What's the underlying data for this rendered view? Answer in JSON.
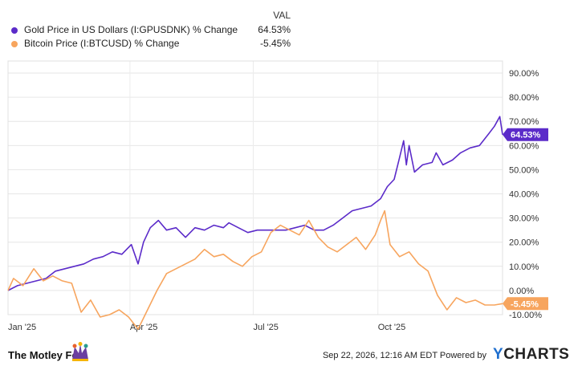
{
  "legend": {
    "header": "VAL",
    "series": [
      {
        "name": "Gold Price in US Dollars (I:GPUSDNK) % Change",
        "value": "64.53%",
        "color": "#5b2bc9"
      },
      {
        "name": "Bitcoin Price (I:BTCUSD) % Change",
        "value": "-5.45%",
        "color": "#f7a55e"
      }
    ]
  },
  "footer": {
    "brand": "The Motley Fool",
    "credit": "Sep 22, 2026, 12:16 AM EDT Powered by",
    "ycharts_y": "Y",
    "ycharts_rest": "CHARTS"
  },
  "chart_data": {
    "type": "line",
    "x_tick_labels": [
      "Jan '25",
      "Apr '25",
      "Jul '25",
      "Oct '25"
    ],
    "y_tick_labels": [
      "90.00%",
      "80.00%",
      "70.00%",
      "60.00%",
      "50.00%",
      "40.00%",
      "30.00%",
      "20.00%",
      "10.00%",
      "0.00%",
      "-10.00%"
    ],
    "ylim": [
      -10,
      95
    ],
    "xlim": [
      "2025-01-01",
      "2026-01-01"
    ],
    "grid": true,
    "series": [
      {
        "name": "Gold Price in US Dollars (I:GPUSDNK) % Change",
        "color": "#5b2bc9",
        "end_label": "64.53%",
        "points": [
          [
            "2025-01-01",
            0
          ],
          [
            "2025-01-08",
            2
          ],
          [
            "2025-01-15",
            3
          ],
          [
            "2025-01-22",
            4
          ],
          [
            "2025-01-29",
            5
          ],
          [
            "2025-02-05",
            8
          ],
          [
            "2025-02-12",
            9
          ],
          [
            "2025-02-19",
            10
          ],
          [
            "2025-02-26",
            11
          ],
          [
            "2025-03-05",
            13
          ],
          [
            "2025-03-12",
            14
          ],
          [
            "2025-03-19",
            16
          ],
          [
            "2025-03-26",
            15
          ],
          [
            "2025-04-02",
            19
          ],
          [
            "2025-04-07",
            11
          ],
          [
            "2025-04-11",
            20
          ],
          [
            "2025-04-16",
            26
          ],
          [
            "2025-04-22",
            29
          ],
          [
            "2025-04-28",
            25
          ],
          [
            "2025-05-05",
            26
          ],
          [
            "2025-05-12",
            22
          ],
          [
            "2025-05-19",
            26
          ],
          [
            "2025-05-26",
            25
          ],
          [
            "2025-06-02",
            27
          ],
          [
            "2025-06-09",
            26
          ],
          [
            "2025-06-13",
            28
          ],
          [
            "2025-06-20",
            26
          ],
          [
            "2025-06-27",
            24
          ],
          [
            "2025-07-04",
            25
          ],
          [
            "2025-07-11",
            25
          ],
          [
            "2025-07-18",
            25
          ],
          [
            "2025-07-25",
            25
          ],
          [
            "2025-08-01",
            26
          ],
          [
            "2025-08-08",
            27
          ],
          [
            "2025-08-15",
            25
          ],
          [
            "2025-08-22",
            25
          ],
          [
            "2025-08-29",
            27
          ],
          [
            "2025-09-05",
            30
          ],
          [
            "2025-09-12",
            33
          ],
          [
            "2025-09-19",
            34
          ],
          [
            "2025-09-26",
            35
          ],
          [
            "2025-10-03",
            38
          ],
          [
            "2025-10-08",
            43
          ],
          [
            "2025-10-13",
            46
          ],
          [
            "2025-10-17",
            55
          ],
          [
            "2025-10-20",
            62
          ],
          [
            "2025-10-22",
            52
          ],
          [
            "2025-10-24",
            60
          ],
          [
            "2025-10-28",
            49
          ],
          [
            "2025-11-03",
            52
          ],
          [
            "2025-11-10",
            53
          ],
          [
            "2025-11-13",
            57
          ],
          [
            "2025-11-18",
            52
          ],
          [
            "2025-11-25",
            54
          ],
          [
            "2025-12-01",
            57
          ],
          [
            "2025-12-08",
            59
          ],
          [
            "2025-12-15",
            60
          ],
          [
            "2025-12-22",
            65
          ],
          [
            "2025-12-26",
            68
          ],
          [
            "2025-12-30",
            72
          ],
          [
            "2026-01-01",
            64.53
          ]
        ]
      },
      {
        "name": "Bitcoin Price (I:BTCUSD) % Change",
        "color": "#f7a55e",
        "end_label": "-5.45%",
        "points": [
          [
            "2025-01-01",
            0
          ],
          [
            "2025-01-05",
            5
          ],
          [
            "2025-01-12",
            2
          ],
          [
            "2025-01-20",
            9
          ],
          [
            "2025-01-27",
            4
          ],
          [
            "2025-02-03",
            6
          ],
          [
            "2025-02-10",
            4
          ],
          [
            "2025-02-17",
            3
          ],
          [
            "2025-02-24",
            -9
          ],
          [
            "2025-03-03",
            -4
          ],
          [
            "2025-03-10",
            -11
          ],
          [
            "2025-03-17",
            -10
          ],
          [
            "2025-03-24",
            -8
          ],
          [
            "2025-03-31",
            -11
          ],
          [
            "2025-04-07",
            -16
          ],
          [
            "2025-04-14",
            -8
          ],
          [
            "2025-04-21",
            0
          ],
          [
            "2025-04-28",
            7
          ],
          [
            "2025-05-05",
            9
          ],
          [
            "2025-05-12",
            11
          ],
          [
            "2025-05-19",
            13
          ],
          [
            "2025-05-26",
            17
          ],
          [
            "2025-06-02",
            14
          ],
          [
            "2025-06-09",
            15
          ],
          [
            "2025-06-16",
            12
          ],
          [
            "2025-06-23",
            10
          ],
          [
            "2025-06-30",
            14
          ],
          [
            "2025-07-07",
            16
          ],
          [
            "2025-07-14",
            24
          ],
          [
            "2025-07-21",
            27
          ],
          [
            "2025-07-28",
            25
          ],
          [
            "2025-08-04",
            23
          ],
          [
            "2025-08-11",
            29
          ],
          [
            "2025-08-18",
            22
          ],
          [
            "2025-08-25",
            18
          ],
          [
            "2025-09-01",
            16
          ],
          [
            "2025-09-08",
            19
          ],
          [
            "2025-09-15",
            22
          ],
          [
            "2025-09-22",
            17
          ],
          [
            "2025-09-29",
            23
          ],
          [
            "2025-10-03",
            29
          ],
          [
            "2025-10-06",
            33
          ],
          [
            "2025-10-10",
            19
          ],
          [
            "2025-10-17",
            14
          ],
          [
            "2025-10-24",
            16
          ],
          [
            "2025-10-31",
            11
          ],
          [
            "2025-11-07",
            8
          ],
          [
            "2025-11-14",
            -2
          ],
          [
            "2025-11-21",
            -8
          ],
          [
            "2025-11-28",
            -3
          ],
          [
            "2025-12-05",
            -5
          ],
          [
            "2025-12-12",
            -4
          ],
          [
            "2025-12-19",
            -6
          ],
          [
            "2025-12-26",
            -6
          ],
          [
            "2026-01-01",
            -5.45
          ]
        ]
      }
    ]
  }
}
